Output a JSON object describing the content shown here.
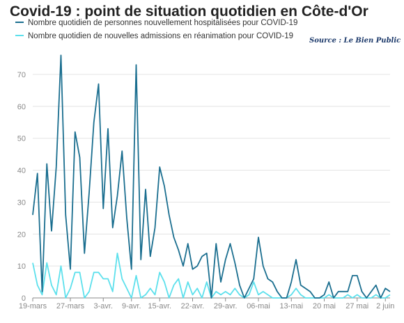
{
  "chart_data": {
    "type": "line",
    "title": "Covid-19 : point de situation quotidien en Côte-d'Or",
    "source": "Source : Le Bien Public",
    "xlabel": "",
    "ylabel": "",
    "ylim": [
      0,
      75
    ],
    "y_ticks": [
      0,
      10,
      20,
      30,
      40,
      50,
      60,
      70
    ],
    "grid": true,
    "legend_position": "top-left",
    "x_start": "19-mars",
    "x_end": "2 juin",
    "x_ticks": [
      "19-mars",
      "27-mars",
      "3-avr.",
      "9-avr.",
      "15-avr.",
      "22-avr.",
      "29-avr.",
      "06-mai",
      "13-mai",
      "20 mai",
      "27 mai",
      "2 juin"
    ],
    "series": [
      {
        "name": "Nombre quotidien de personnes nouvellement hospitalisées pour COVID-19",
        "color": "#1a6e8f",
        "values": [
          26,
          39,
          2,
          42,
          21,
          41,
          76,
          26,
          9,
          52,
          44,
          14,
          33,
          55,
          67,
          28,
          53,
          22,
          32,
          46,
          25,
          9,
          73,
          12,
          34,
          13,
          22,
          41,
          35,
          26,
          19,
          15,
          10,
          17,
          9,
          10,
          13,
          14,
          0,
          17,
          5,
          12,
          17,
          11,
          4,
          0,
          3,
          6,
          19,
          10,
          6,
          5,
          2,
          0,
          0,
          5,
          12,
          4,
          3,
          2,
          0,
          0,
          1,
          5,
          0,
          2,
          2,
          2,
          7,
          7,
          2,
          0,
          2,
          4,
          0,
          3,
          2
        ]
      },
      {
        "name": "Nombre quotidien de nouvelles admissions en réanimation pour COVID-19",
        "color": "#5ce0ec",
        "values": [
          11,
          4,
          1,
          11,
          4,
          1,
          10,
          0,
          3,
          8,
          8,
          0,
          2,
          8,
          8,
          6,
          6,
          2,
          14,
          6,
          3,
          0,
          7,
          0,
          1,
          3,
          1,
          8,
          5,
          0,
          4,
          6,
          0,
          5,
          1,
          3,
          0,
          5,
          0,
          2,
          1,
          2,
          1,
          3,
          1,
          0,
          1,
          5,
          1,
          2,
          1,
          0,
          0,
          0,
          0,
          1,
          3,
          1,
          0,
          0,
          0,
          0,
          0,
          1,
          0,
          0,
          0,
          1,
          0,
          1,
          0,
          0,
          0,
          1,
          0,
          0,
          1
        ]
      }
    ]
  }
}
